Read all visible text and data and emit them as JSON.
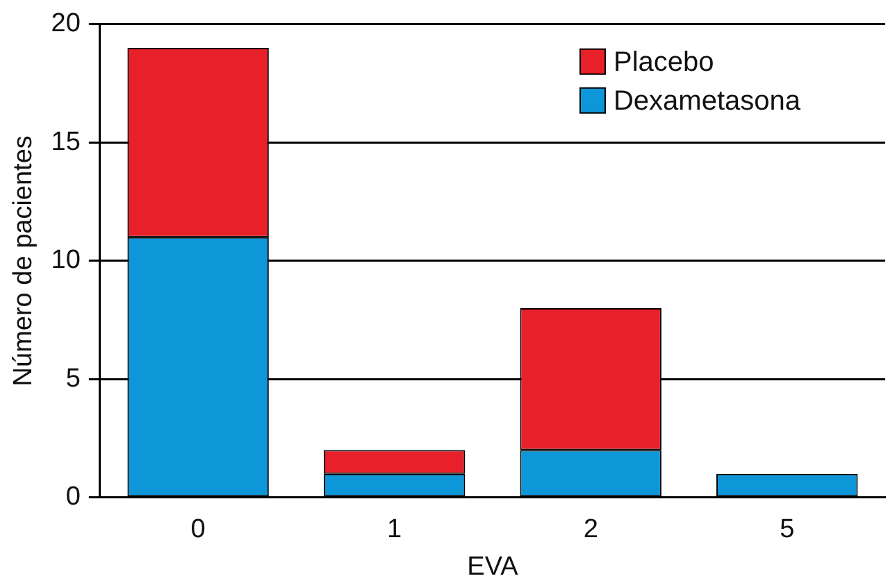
{
  "chart_data": {
    "type": "bar",
    "stacked": true,
    "xlabel": "EVA",
    "ylabel": "Número de pacientes",
    "categories": [
      "0",
      "1",
      "2",
      "5"
    ],
    "series": [
      {
        "name": "Dexametasona",
        "color": "#0d96d8",
        "values": [
          11,
          1,
          2,
          1
        ]
      },
      {
        "name": "Placebo",
        "color": "#e8202a",
        "values": [
          8,
          1,
          6,
          0
        ]
      }
    ],
    "ylim": [
      0,
      20
    ],
    "yticks": [
      0,
      5,
      10,
      15,
      20
    ],
    "grid": "y",
    "legend": "top right"
  }
}
